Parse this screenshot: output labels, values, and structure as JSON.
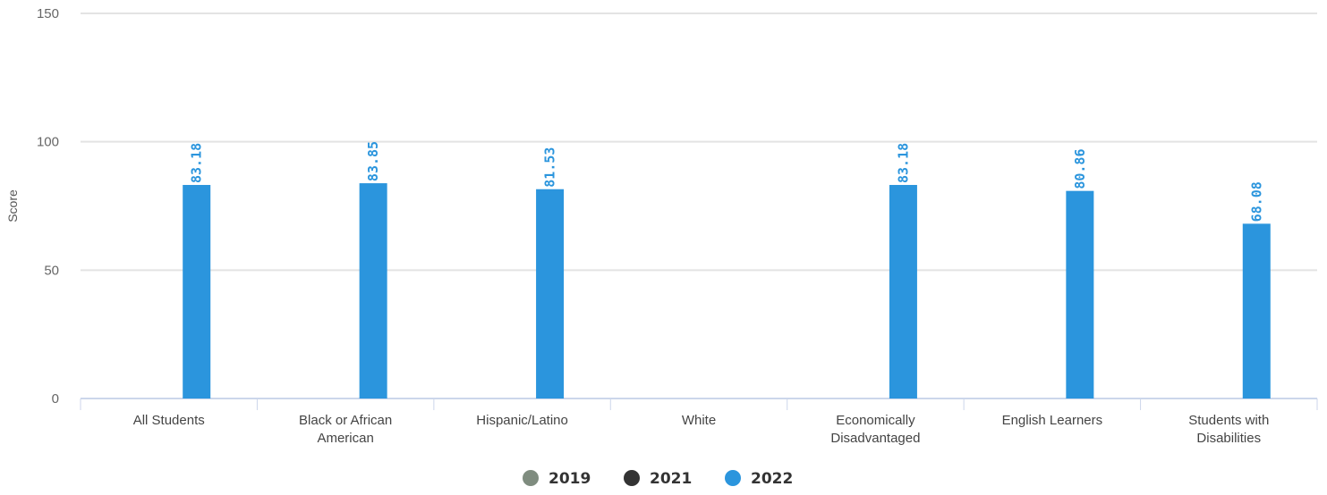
{
  "chart_data": {
    "type": "bar",
    "ylabel": "Score",
    "ylim": [
      0,
      150
    ],
    "yticks": [
      0,
      50,
      100,
      150
    ],
    "grid": true,
    "legend_position": "bottom-center",
    "categories": [
      [
        "All Students"
      ],
      [
        "Black or African",
        "American"
      ],
      [
        "Hispanic/Latino"
      ],
      [
        "White"
      ],
      [
        "Economically",
        "Disadvantaged"
      ],
      [
        "English Learners"
      ],
      [
        "Students with",
        "Disabilities"
      ]
    ],
    "series": [
      {
        "name": "2019",
        "color": "#7f8c7f",
        "values": [
          null,
          null,
          null,
          null,
          null,
          null,
          null
        ]
      },
      {
        "name": "2021",
        "color": "#333333",
        "values": [
          null,
          null,
          null,
          null,
          null,
          null,
          null
        ]
      },
      {
        "name": "2022",
        "color": "#2b95dd",
        "values": [
          83.18,
          83.85,
          81.53,
          null,
          83.18,
          80.86,
          68.08
        ]
      }
    ]
  }
}
